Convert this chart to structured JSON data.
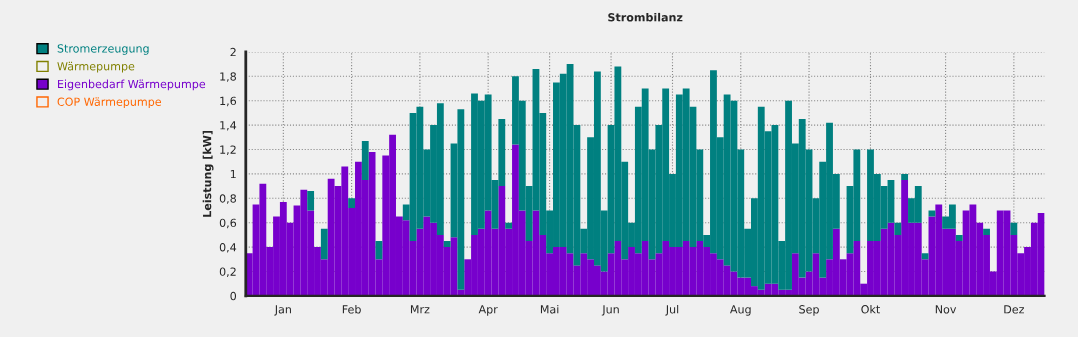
{
  "chart_data": {
    "type": "bar",
    "title": "Strombilanz",
    "ylabel": "Leistung [kW]",
    "stacked": true,
    "categories": [
      null,
      null,
      null,
      null,
      null,
      "Jan",
      null,
      null,
      null,
      null,
      null,
      null,
      null,
      null,
      null,
      "Feb",
      null,
      null,
      null,
      null,
      null,
      null,
      null,
      null,
      null,
      "Mrz",
      null,
      null,
      null,
      null,
      null,
      null,
      null,
      null,
      null,
      "Apr",
      null,
      null,
      null,
      null,
      null,
      null,
      null,
      null,
      "Mai",
      null,
      null,
      null,
      null,
      null,
      null,
      null,
      null,
      "Jun",
      null,
      null,
      null,
      null,
      null,
      null,
      null,
      null,
      "Jul",
      null,
      null,
      null,
      null,
      null,
      null,
      null,
      null,
      null,
      "Aug",
      null,
      null,
      null,
      null,
      null,
      null,
      null,
      null,
      null,
      "Sep",
      null,
      null,
      null,
      null,
      null,
      null,
      null,
      null,
      "Okt",
      null,
      null,
      null,
      null,
      null,
      null,
      null,
      null,
      null,
      null,
      "Nov",
      null,
      null,
      null,
      null,
      null,
      null,
      null,
      null,
      null,
      "Dez",
      null,
      null,
      null,
      null
    ],
    "ylim": [
      0,
      2
    ],
    "yticks": [
      0,
      {
        "value": 0.2,
        "label": "0,2"
      },
      {
        "value": 0.4,
        "label": "0,4"
      },
      {
        "value": 0.6,
        "label": "0,6"
      },
      {
        "value": 0.8,
        "label": "0,8"
      },
      1,
      {
        "value": 1.2,
        "label": "1,2"
      },
      {
        "value": 1.4,
        "label": "1,4"
      },
      {
        "value": 1.6,
        "label": "1,6"
      },
      {
        "value": 1.8,
        "label": "1,8"
      },
      2
    ],
    "grid": true,
    "legend": "left",
    "series": [
      {
        "name": "COP Wärmepumpe",
        "color": "#ff6600",
        "values": [
          null,
          null,
          null,
          null,
          null,
          null,
          null,
          null,
          null,
          null,
          null,
          null,
          null,
          null,
          null,
          null,
          null,
          null,
          null,
          null,
          null,
          null,
          null,
          null,
          null,
          null,
          null,
          null,
          null,
          null,
          null,
          null,
          null,
          null,
          null,
          null,
          null,
          null,
          null,
          null,
          null,
          null,
          null,
          null,
          null,
          null,
          null,
          null,
          null,
          null,
          null,
          null,
          null,
          null,
          null,
          null,
          null,
          null,
          null,
          null,
          null,
          null,
          null,
          null,
          null,
          null,
          null,
          null,
          null,
          null,
          null,
          null,
          null,
          null,
          null,
          null,
          null,
          null,
          null,
          null,
          null,
          null,
          null,
          null,
          null,
          null,
          null,
          null,
          null,
          null,
          null,
          null,
          null,
          null,
          null,
          null,
          null,
          null,
          null,
          null,
          null,
          null,
          null,
          null,
          null,
          null,
          null,
          null,
          null,
          null,
          null,
          null,
          null,
          null,
          null,
          null,
          null
        ]
      },
      {
        "name": "Eigenbedarf Wärmepumpe",
        "color": "#7700cc",
        "values": [
          0.35,
          0.75,
          0.92,
          0.4,
          0.65,
          0.77,
          0.6,
          0.74,
          0.87,
          0.7,
          0.4,
          0.3,
          0.96,
          0.9,
          1.06,
          0.72,
          1.1,
          0.95,
          1.18,
          0.3,
          1.15,
          1.32,
          0.65,
          0.62,
          0.45,
          0.55,
          0.65,
          0.6,
          0.5,
          0.4,
          0.48,
          0.05,
          0.3,
          0.5,
          0.55,
          0.7,
          0.55,
          0.9,
          0.55,
          1.24,
          0.7,
          0.45,
          0.7,
          0.5,
          0.35,
          0.4,
          0.4,
          0.35,
          0.25,
          0.35,
          0.3,
          0.25,
          0.2,
          0.35,
          0.45,
          0.3,
          0.4,
          0.35,
          0.45,
          0.3,
          0.35,
          0.45,
          0.4,
          0.4,
          0.45,
          0.4,
          0.45,
          0.4,
          0.35,
          0.3,
          0.25,
          0.2,
          0.15,
          0.15,
          0.08,
          0.05,
          0.1,
          0.1,
          0.05,
          0.05,
          0.35,
          0.15,
          0.2,
          0.35,
          0.15,
          0.3,
          0.55,
          0.3,
          0.35,
          0.45,
          0.1,
          0.45,
          0.45,
          0.55,
          0.6,
          0.5,
          0.95,
          0.6,
          0.6,
          0.3,
          0.65,
          0.75,
          0.55,
          0.55,
          0.45,
          0.7,
          0.75,
          0.6,
          0.5,
          0.2,
          0.7,
          0.7,
          0.5,
          0.35,
          0.4,
          0.6,
          0.68
        ]
      },
      {
        "name": "Wärmepumpe",
        "color": "#808000",
        "values": [
          null,
          null,
          null,
          null,
          null,
          null,
          null,
          null,
          null,
          null,
          null,
          null,
          null,
          null,
          null,
          null,
          null,
          null,
          null,
          null,
          null,
          null,
          null,
          null,
          null,
          null,
          null,
          null,
          null,
          null,
          null,
          null,
          null,
          null,
          null,
          null,
          null,
          null,
          null,
          null,
          null,
          null,
          null,
          null,
          null,
          null,
          null,
          null,
          null,
          null,
          null,
          null,
          null,
          null,
          null,
          null,
          null,
          null,
          null,
          null,
          null,
          null,
          null,
          null,
          null,
          null,
          null,
          null,
          null,
          null,
          null,
          null,
          null,
          null,
          null,
          null,
          null,
          null,
          null,
          null,
          null,
          null,
          null,
          null,
          null,
          null,
          null,
          null,
          null,
          null,
          null,
          null,
          null,
          null,
          null,
          null,
          null,
          null,
          null,
          null,
          null,
          null,
          null,
          null,
          null,
          null,
          null,
          null,
          null,
          null,
          null,
          null,
          null,
          null,
          null,
          null,
          null
        ]
      },
      {
        "name": "Stromerzeugung",
        "color": "#008080",
        "values": [
          0,
          0,
          0,
          0,
          0,
          0,
          0,
          0,
          0,
          0.16,
          0,
          0.25,
          0,
          0,
          0,
          0.08,
          0,
          0.32,
          0,
          0.15,
          0,
          0,
          0,
          0.13,
          1.05,
          1.0,
          0.55,
          0.8,
          1.08,
          0.05,
          0.77,
          1.48,
          0,
          1.16,
          1.05,
          0.95,
          0.4,
          0.55,
          0.05,
          0.56,
          0.9,
          0.45,
          1.16,
          1.0,
          0.35,
          1.35,
          1.42,
          1.55,
          1.15,
          0.2,
          1.0,
          1.59,
          0.5,
          1.05,
          1.43,
          0.8,
          0.2,
          1.2,
          1.25,
          0.9,
          1.05,
          1.25,
          0.6,
          1.25,
          1.25,
          1.15,
          0.75,
          0.1,
          1.5,
          1.0,
          1.4,
          1.4,
          1.05,
          0.4,
          0.72,
          1.5,
          1.25,
          1.3,
          0.4,
          1.55,
          0.9,
          1.3,
          1.0,
          0.45,
          0.95,
          1.12,
          0.45,
          0,
          0.55,
          0.75,
          0,
          0.75,
          0.55,
          0.35,
          0.35,
          0.1,
          0.05,
          0.2,
          0.3,
          0.05,
          0.05,
          0,
          0.1,
          0.2,
          0.05,
          0,
          0,
          0,
          0.05,
          0,
          0,
          0,
          0.1,
          0,
          0,
          0,
          0
        ]
      }
    ]
  }
}
